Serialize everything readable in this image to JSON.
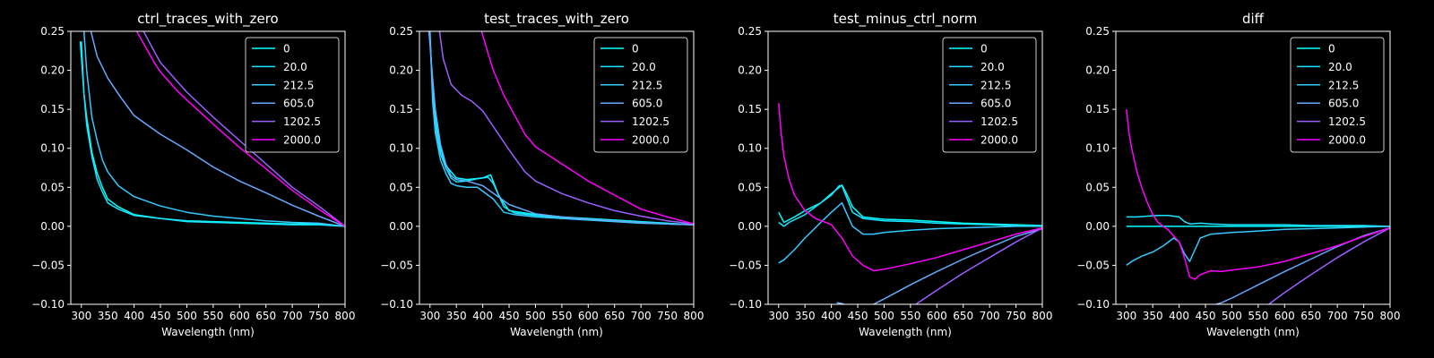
{
  "figure": {
    "background": "#000000",
    "foreground": "#ffffff"
  },
  "chart_data": [
    {
      "type": "line",
      "title": "ctrl_traces_with_zero",
      "xlabel": "Wavelength (nm)",
      "ylabel": "",
      "xlim": [
        280,
        800
      ],
      "ylim": [
        -0.1,
        0.25
      ],
      "xticks": [
        300,
        350,
        400,
        450,
        500,
        550,
        600,
        650,
        700,
        750,
        800
      ],
      "yticks": [
        -0.1,
        -0.05,
        0.0,
        0.05,
        0.1,
        0.15,
        0.2,
        0.25
      ],
      "ytick_labels": [
        "−0.10",
        "−0.05",
        "0.00",
        "0.05",
        "0.10",
        "0.15",
        "0.20",
        "0.25"
      ],
      "legend_position": "top-right",
      "series": [
        {
          "name": "0",
          "color": "#00ffff",
          "x": [
            298,
            305,
            310,
            320,
            330,
            340,
            350,
            370,
            400,
            450,
            500,
            550,
            600,
            650,
            700,
            750,
            800
          ],
          "y": [
            0.237,
            0.17,
            0.14,
            0.095,
            0.068,
            0.05,
            0.035,
            0.025,
            0.015,
            0.01,
            0.007,
            0.006,
            0.005,
            0.004,
            0.003,
            0.003,
            0.0
          ]
        },
        {
          "name": "20.0",
          "color": "#1ae5ff",
          "x": [
            300,
            305,
            310,
            320,
            330,
            340,
            350,
            370,
            400,
            450,
            500,
            550,
            600,
            650,
            700,
            750,
            800
          ],
          "y": [
            0.237,
            0.17,
            0.13,
            0.09,
            0.06,
            0.044,
            0.03,
            0.022,
            0.014,
            0.01,
            0.006,
            0.005,
            0.004,
            0.003,
            0.002,
            0.002,
            0.0
          ]
        },
        {
          "name": "212.5",
          "color": "#35caff",
          "x": [
            305,
            310,
            320,
            330,
            340,
            350,
            370,
            400,
            450,
            500,
            550,
            600,
            650,
            700,
            750,
            800
          ],
          "y": [
            0.25,
            0.2,
            0.14,
            0.11,
            0.085,
            0.07,
            0.052,
            0.038,
            0.026,
            0.018,
            0.013,
            0.01,
            0.007,
            0.005,
            0.004,
            0.0
          ]
        },
        {
          "name": "605.0",
          "color": "#66a9ff",
          "x": [
            318,
            330,
            350,
            375,
            400,
            450,
            500,
            550,
            600,
            650,
            700,
            750,
            800
          ],
          "y": [
            0.25,
            0.218,
            0.19,
            0.165,
            0.142,
            0.118,
            0.098,
            0.076,
            0.058,
            0.043,
            0.027,
            0.013,
            0.0
          ]
        },
        {
          "name": "1202.5",
          "color": "#9b5fff",
          "x": [
            418,
            440,
            450,
            480,
            500,
            550,
            600,
            650,
            700,
            750,
            800
          ],
          "y": [
            0.25,
            0.222,
            0.21,
            0.187,
            0.172,
            0.14,
            0.11,
            0.08,
            0.05,
            0.026,
            0.0
          ]
        },
        {
          "name": "2000.0",
          "color": "#ff00ff",
          "x": [
            405,
            420,
            440,
            450,
            480,
            500,
            550,
            600,
            650,
            700,
            750,
            800
          ],
          "y": [
            0.25,
            0.232,
            0.208,
            0.198,
            0.175,
            0.162,
            0.131,
            0.101,
            0.074,
            0.046,
            0.022,
            0.0
          ]
        }
      ]
    },
    {
      "type": "line",
      "title": "test_traces_with_zero",
      "xlabel": "Wavelength (nm)",
      "ylabel": "",
      "xlim": [
        280,
        800
      ],
      "ylim": [
        -0.1,
        0.25
      ],
      "xticks": [
        300,
        350,
        400,
        450,
        500,
        550,
        600,
        650,
        700,
        750,
        800
      ],
      "yticks": [
        -0.1,
        -0.05,
        0.0,
        0.05,
        0.1,
        0.15,
        0.2,
        0.25
      ],
      "ytick_labels": [
        "−0.10",
        "−0.05",
        "0.00",
        "0.05",
        "0.10",
        "0.15",
        "0.20",
        "0.25"
      ],
      "legend_position": "top-right",
      "series": [
        {
          "name": "0",
          "color": "#00ffff",
          "x": [
            300,
            305,
            310,
            320,
            330,
            340,
            350,
            370,
            400,
            415,
            430,
            450,
            500,
            550,
            600,
            650,
            700,
            750,
            800
          ],
          "y": [
            0.24,
            0.18,
            0.14,
            0.1,
            0.078,
            0.07,
            0.062,
            0.06,
            0.062,
            0.066,
            0.04,
            0.02,
            0.015,
            0.012,
            0.01,
            0.008,
            0.006,
            0.004,
            0.002
          ]
        },
        {
          "name": "20.0",
          "color": "#1ae5ff",
          "x": [
            300,
            305,
            310,
            320,
            330,
            340,
            350,
            370,
            390,
            410,
            420,
            440,
            460,
            500,
            550,
            600,
            650,
            700,
            750,
            800
          ],
          "y": [
            0.24,
            0.17,
            0.13,
            0.093,
            0.075,
            0.062,
            0.057,
            0.058,
            0.061,
            0.063,
            0.055,
            0.025,
            0.017,
            0.014,
            0.011,
            0.009,
            0.007,
            0.005,
            0.003,
            0.002
          ]
        },
        {
          "name": "212.5",
          "color": "#35caff",
          "x": [
            300,
            305,
            310,
            320,
            330,
            340,
            350,
            370,
            390,
            400,
            420,
            440,
            460,
            500,
            550,
            600,
            650,
            700,
            750,
            800
          ],
          "y": [
            0.25,
            0.16,
            0.12,
            0.085,
            0.068,
            0.055,
            0.052,
            0.05,
            0.05,
            0.045,
            0.035,
            0.018,
            0.015,
            0.012,
            0.01,
            0.008,
            0.006,
            0.004,
            0.003,
            0.002
          ]
        },
        {
          "name": "605.0",
          "color": "#66a9ff",
          "x": [
            298,
            305,
            310,
            320,
            330,
            340,
            350,
            370,
            400,
            450,
            500,
            550,
            600,
            650,
            700,
            750,
            800
          ],
          "y": [
            0.25,
            0.19,
            0.15,
            0.105,
            0.08,
            0.065,
            0.06,
            0.058,
            0.052,
            0.028,
            0.016,
            0.012,
            0.009,
            0.007,
            0.005,
            0.003,
            0.002
          ]
        },
        {
          "name": "1202.5",
          "color": "#9b5fff",
          "x": [
            318,
            325,
            340,
            360,
            380,
            400,
            420,
            450,
            480,
            500,
            550,
            600,
            650,
            700,
            750,
            800
          ],
          "y": [
            0.25,
            0.215,
            0.182,
            0.168,
            0.16,
            0.148,
            0.128,
            0.098,
            0.07,
            0.058,
            0.042,
            0.03,
            0.02,
            0.013,
            0.007,
            0.003
          ]
        },
        {
          "name": "2000.0",
          "color": "#ff00ff",
          "x": [
            398,
            410,
            420,
            440,
            460,
            480,
            500,
            550,
            600,
            650,
            700,
            750,
            800
          ],
          "y": [
            0.25,
            0.222,
            0.2,
            0.168,
            0.143,
            0.118,
            0.102,
            0.08,
            0.058,
            0.04,
            0.022,
            0.012,
            0.003
          ]
        }
      ]
    },
    {
      "type": "line",
      "title": "test_minus_ctrl_norm",
      "xlabel": "Wavelength (nm)",
      "ylabel": "",
      "xlim": [
        280,
        800
      ],
      "ylim": [
        -0.1,
        0.25
      ],
      "xticks": [
        300,
        350,
        400,
        450,
        500,
        550,
        600,
        650,
        700,
        750,
        800
      ],
      "yticks": [
        -0.1,
        -0.05,
        0.0,
        0.05,
        0.1,
        0.15,
        0.2,
        0.25
      ],
      "ytick_labels": [
        "−0.10",
        "−0.05",
        "0.00",
        "0.05",
        "0.10",
        "0.15",
        "0.20",
        "0.25"
      ],
      "legend_position": "top-right",
      "series": [
        {
          "name": "0",
          "color": "#00ffff",
          "x": [
            300,
            310,
            330,
            350,
            380,
            400,
            415,
            420,
            430,
            440,
            460,
            500,
            550,
            600,
            650,
            700,
            750,
            800
          ],
          "y": [
            0.018,
            0.005,
            0.012,
            0.02,
            0.03,
            0.042,
            0.05,
            0.053,
            0.04,
            0.025,
            0.012,
            0.009,
            0.008,
            0.006,
            0.004,
            0.003,
            0.002,
            0.001
          ]
        },
        {
          "name": "20.0",
          "color": "#1ae5ff",
          "x": [
            300,
            310,
            320,
            350,
            380,
            400,
            415,
            420,
            430,
            440,
            460,
            500,
            550,
            600,
            650,
            700,
            750,
            800
          ],
          "y": [
            0.005,
            0.0,
            0.005,
            0.015,
            0.03,
            0.04,
            0.052,
            0.052,
            0.035,
            0.018,
            0.01,
            0.007,
            0.006,
            0.004,
            0.003,
            0.002,
            0.001,
            0.0
          ]
        },
        {
          "name": "212.5",
          "color": "#35caff",
          "x": [
            300,
            310,
            330,
            350,
            380,
            400,
            420,
            440,
            460,
            480,
            500,
            550,
            600,
            650,
            700,
            750,
            800
          ],
          "y": [
            -0.047,
            -0.043,
            -0.03,
            -0.015,
            0.005,
            0.018,
            0.03,
            0.0,
            -0.01,
            -0.01,
            -0.008,
            -0.005,
            -0.003,
            -0.002,
            -0.001,
            0.0,
            0.0
          ]
        },
        {
          "name": "605.0",
          "color": "#66a9ff",
          "x": [
            410,
            420,
            430,
            450,
            480,
            500,
            550,
            600,
            650,
            700,
            750,
            800
          ],
          "y": [
            -0.098,
            -0.099,
            -0.102,
            -0.112,
            -0.1,
            -0.093,
            -0.075,
            -0.058,
            -0.042,
            -0.027,
            -0.013,
            -0.003
          ]
        },
        {
          "name": "1202.5",
          "color": "#9b5fff",
          "x": [
            550,
            560,
            600,
            650,
            700,
            750,
            800
          ],
          "y": [
            -0.105,
            -0.1,
            -0.082,
            -0.06,
            -0.04,
            -0.02,
            -0.002
          ]
        },
        {
          "name": "2000.0",
          "color": "#ff00ff",
          "x": [
            300,
            305,
            310,
            320,
            330,
            350,
            370,
            400,
            420,
            440,
            460,
            480,
            500,
            550,
            600,
            650,
            700,
            750,
            800
          ],
          "y": [
            0.158,
            0.118,
            0.09,
            0.06,
            0.04,
            0.02,
            0.01,
            0.002,
            -0.015,
            -0.038,
            -0.05,
            -0.057,
            -0.055,
            -0.048,
            -0.04,
            -0.03,
            -0.02,
            -0.01,
            -0.002
          ]
        }
      ]
    },
    {
      "type": "line",
      "title": "diff",
      "xlabel": "Wavelength (nm)",
      "ylabel": "",
      "xlim": [
        280,
        800
      ],
      "ylim": [
        -0.1,
        0.25
      ],
      "xticks": [
        300,
        350,
        400,
        450,
        500,
        550,
        600,
        650,
        700,
        750,
        800
      ],
      "yticks": [
        -0.1,
        -0.05,
        0.0,
        0.05,
        0.1,
        0.15,
        0.2,
        0.25
      ],
      "ytick_labels": [
        "−0.10",
        "−0.05",
        "0.00",
        "0.05",
        "0.10",
        "0.15",
        "0.20",
        "0.25"
      ],
      "legend_position": "top-right",
      "series": [
        {
          "name": "0",
          "color": "#00ffff",
          "x": [
            300,
            800
          ],
          "y": [
            0.0,
            0.0
          ]
        },
        {
          "name": "20.0",
          "color": "#1ae5ff",
          "x": [
            300,
            320,
            340,
            360,
            380,
            400,
            410,
            420,
            440,
            460,
            500,
            550,
            600,
            650,
            700,
            750,
            800
          ],
          "y": [
            0.012,
            0.012,
            0.013,
            0.014,
            0.014,
            0.012,
            0.006,
            0.003,
            0.004,
            0.003,
            0.002,
            0.002,
            0.002,
            0.001,
            0.001,
            0.001,
            0.0
          ]
        },
        {
          "name": "212.5",
          "color": "#35caff",
          "x": [
            300,
            310,
            330,
            350,
            370,
            390,
            400,
            410,
            420,
            430,
            440,
            460,
            500,
            550,
            600,
            650,
            700,
            750,
            800
          ],
          "y": [
            -0.05,
            -0.045,
            -0.038,
            -0.033,
            -0.025,
            -0.015,
            -0.02,
            -0.035,
            -0.045,
            -0.03,
            -0.015,
            -0.01,
            -0.008,
            -0.006,
            -0.004,
            -0.003,
            -0.002,
            -0.001,
            0.0
          ]
        },
        {
          "name": "605.0",
          "color": "#66a9ff",
          "x": [
            470,
            480,
            500,
            550,
            600,
            650,
            700,
            750,
            800
          ],
          "y": [
            -0.1,
            -0.098,
            -0.092,
            -0.075,
            -0.058,
            -0.042,
            -0.026,
            -0.012,
            -0.002
          ]
        },
        {
          "name": "1202.5",
          "color": "#9b5fff",
          "x": [
            570,
            580,
            600,
            650,
            700,
            750,
            800
          ],
          "y": [
            -0.1,
            -0.095,
            -0.085,
            -0.062,
            -0.04,
            -0.02,
            -0.002
          ]
        },
        {
          "name": "2000.0",
          "color": "#ff00ff",
          "x": [
            300,
            305,
            310,
            320,
            330,
            340,
            350,
            360,
            380,
            400,
            410,
            420,
            430,
            440,
            460,
            480,
            500,
            550,
            600,
            650,
            700,
            750,
            800
          ],
          "y": [
            0.15,
            0.12,
            0.1,
            0.07,
            0.048,
            0.03,
            0.015,
            0.005,
            -0.005,
            -0.02,
            -0.04,
            -0.065,
            -0.068,
            -0.062,
            -0.057,
            -0.058,
            -0.056,
            -0.052,
            -0.045,
            -0.035,
            -0.025,
            -0.013,
            -0.002
          ]
        }
      ]
    }
  ]
}
